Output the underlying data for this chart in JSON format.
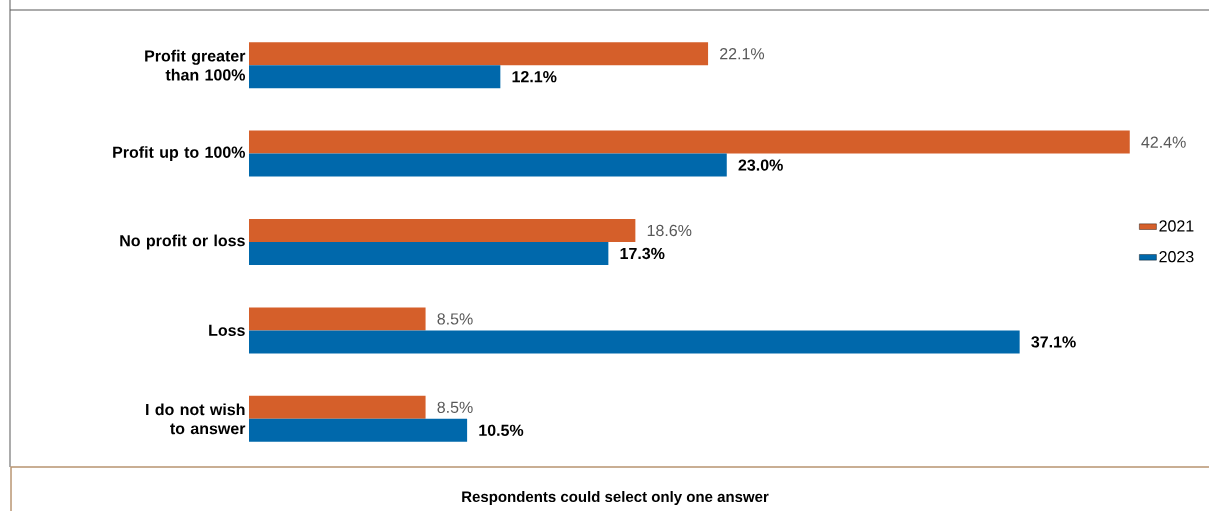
{
  "chart_data": {
    "type": "bar",
    "orientation": "horizontal",
    "categories": [
      "Profit greater than 100%",
      "Profit up to 100%",
      "No profit or loss",
      "Loss",
      "I do not wish to answer"
    ],
    "series": [
      {
        "name": "2021",
        "color": "#d55f2a",
        "values": [
          22.1,
          42.4,
          18.6,
          8.5,
          8.5
        ],
        "value_labels": [
          "22.1%",
          "42.4%",
          "18.6%",
          "8.5%",
          "8.5%"
        ]
      },
      {
        "name": "2023",
        "color": "#0068ab",
        "values": [
          12.1,
          23.0,
          17.3,
          37.1,
          10.5
        ],
        "value_labels": [
          "12.1%",
          "23.0%",
          "17.3%",
          "37.1%",
          "10.5%"
        ]
      }
    ],
    "legend": "right",
    "annotations": [
      "Respondents could select only one answer"
    ]
  }
}
